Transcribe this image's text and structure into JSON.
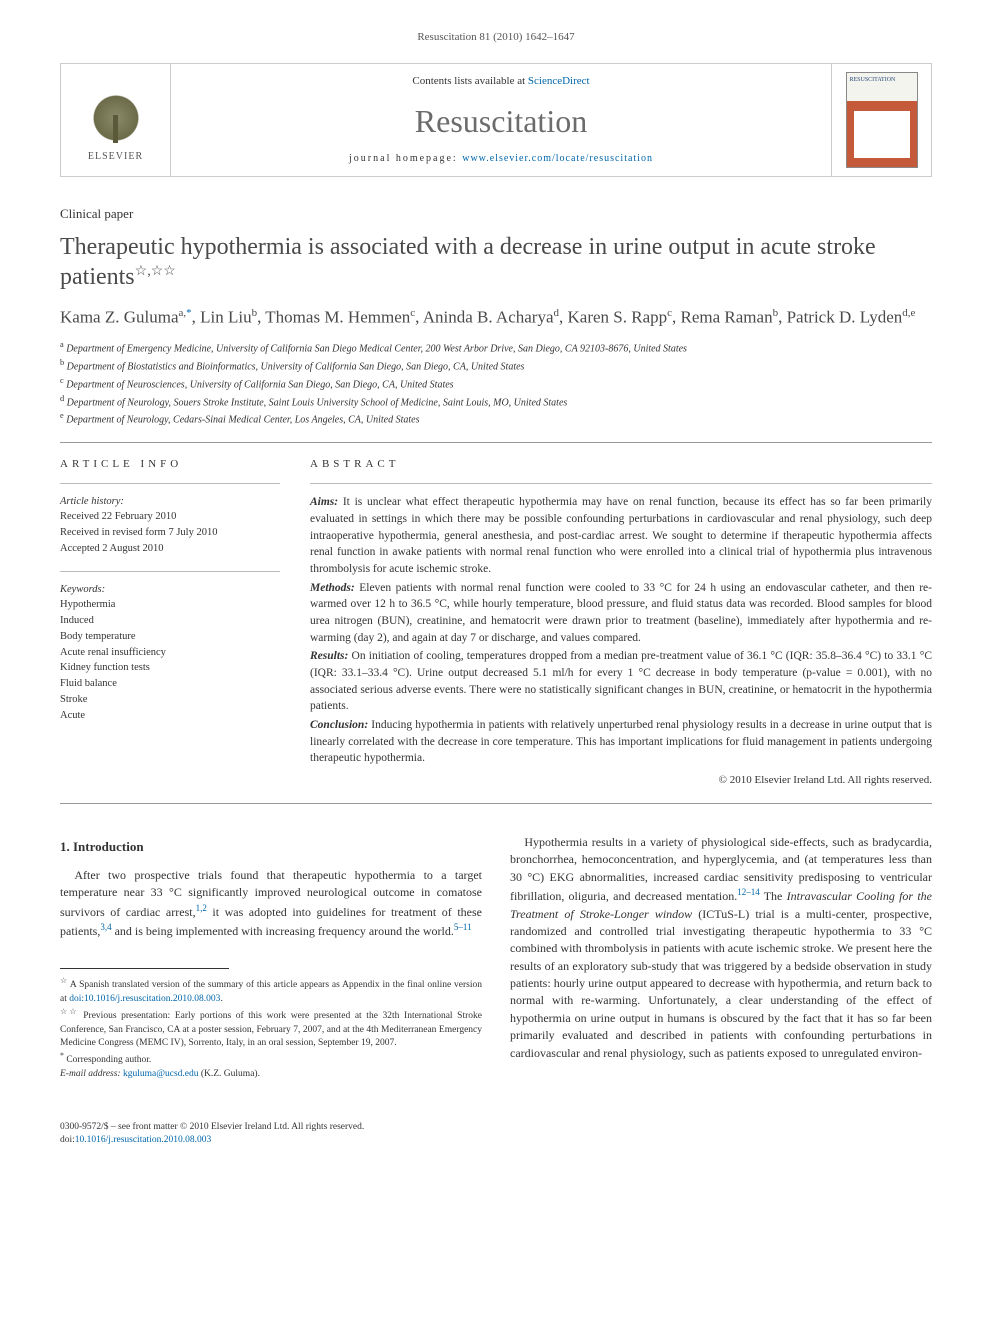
{
  "running_header": "Resuscitation 81 (2010) 1642–1647",
  "masthead": {
    "contents_prefix": "Contents lists available at ",
    "contents_link": "ScienceDirect",
    "journal_name": "Resuscitation",
    "homepage_prefix": "journal homepage: ",
    "homepage_link": "www.elsevier.com/locate/resuscitation",
    "publisher_label": "ELSEVIER",
    "cover_label": "RESUSCITATION"
  },
  "article_type": "Clinical paper",
  "title": "Therapeutic hypothermia is associated with a decrease in urine output in acute stroke patients",
  "title_stars": "☆,☆☆",
  "authors_html": "Kama Z. Guluma<sup class=\"aff-sup\">a,</sup><sup>*</sup>, Lin Liu<sup class=\"aff-sup\">b</sup>, Thomas M. Hemmen<sup class=\"aff-sup\">c</sup>, Aninda B. Acharya<sup class=\"aff-sup\">d</sup>, Karen S. Rapp<sup class=\"aff-sup\">c</sup>, Rema Raman<sup class=\"aff-sup\">b</sup>, Patrick D. Lyden<sup class=\"aff-sup\">d,e</sup>",
  "affiliations": [
    "a Department of Emergency Medicine, University of California San Diego Medical Center, 200 West Arbor Drive, San Diego, CA 92103-8676, United States",
    "b Department of Biostatistics and Bioinformatics, University of California San Diego, San Diego, CA, United States",
    "c Department of Neurosciences, University of California San Diego, San Diego, CA, United States",
    "d Department of Neurology, Souers Stroke Institute, Saint Louis University School of Medicine, Saint Louis, MO, United States",
    "e Department of Neurology, Cedars-Sinai Medical Center, Los Angeles, CA, United States"
  ],
  "info": {
    "heading": "article info",
    "history_label": "Article history:",
    "history": [
      "Received 22 February 2010",
      "Received in revised form 7 July 2010",
      "Accepted 2 August 2010"
    ],
    "keywords_label": "Keywords:",
    "keywords": [
      "Hypothermia",
      "Induced",
      "Body temperature",
      "Acute renal insufficiency",
      "Kidney function tests",
      "Fluid balance",
      "Stroke",
      "Acute"
    ]
  },
  "abstract": {
    "heading": "abstract",
    "aims_lead": "Aims:",
    "aims": " It is unclear what effect therapeutic hypothermia may have on renal function, because its effect has so far been primarily evaluated in settings in which there may be possible confounding perturbations in cardiovascular and renal physiology, such deep intraoperative hypothermia, general anesthesia, and post-cardiac arrest. We sought to determine if therapeutic hypothermia affects renal function in awake patients with normal renal function who were enrolled into a clinical trial of hypothermia plus intravenous thrombolysis for acute ischemic stroke.",
    "methods_lead": "Methods:",
    "methods": " Eleven patients with normal renal function were cooled to 33 °C for 24 h using an endovascular catheter, and then re-warmed over 12 h to 36.5 °C, while hourly temperature, blood pressure, and fluid status data was recorded. Blood samples for blood urea nitrogen (BUN), creatinine, and hematocrit were drawn prior to treatment (baseline), immediately after hypothermia and re-warming (day 2), and again at day 7 or discharge, and values compared.",
    "results_lead": "Results:",
    "results": " On initiation of cooling, temperatures dropped from a median pre-treatment value of 36.1 °C (IQR: 35.8–36.4 °C) to 33.1 °C (IQR: 33.1–33.4 °C). Urine output decreased 5.1 ml/h for every 1 °C decrease in body temperature (p-value = 0.001), with no associated serious adverse events. There were no statistically significant changes in BUN, creatinine, or hematocrit in the hypothermia patients.",
    "conclusion_lead": "Conclusion:",
    "conclusion": " Inducing hypothermia in patients with relatively unperturbed renal physiology results in a decrease in urine output that is linearly correlated with the decrease in core temperature. This has important implications for fluid management in patients undergoing therapeutic hypothermia.",
    "copyright": "© 2010 Elsevier Ireland Ltd. All rights reserved."
  },
  "body": {
    "section1_heading": "1.  Introduction",
    "para1_html": "After two prospective trials found that therapeutic hypothermia to a target temperature near 33 °C significantly improved neurological outcome in comatose survivors of cardiac arrest,<sup class=\"ref\">1,2</sup> it was adopted into guidelines for treatment of these patients,<sup class=\"ref\">3,4</sup> and is being implemented with increasing frequency around the world.<sup class=\"ref\">5–11</sup>",
    "para2_html": "Hypothermia results in a variety of physiological side-effects, such as bradycardia, bronchorrhea, hemoconcentration, and hyperglycemia, and (at temperatures less than 30 °C) EKG abnormalities, increased cardiac sensitivity predisposing to ventricular fibrillation, oliguria, and decreased mentation.<sup class=\"ref\">12–14</sup> The <span class=\"trial-name\">Intravascular Cooling for the Treatment of Stroke-Longer window</span> (ICTuS-L) trial is a multi-center, prospective, randomized and controlled trial investigating therapeutic hypothermia to 33 °C combined with thrombolysis in patients with acute ischemic stroke. We present here the results of an exploratory sub-study that was triggered by a bedside observation in study patients: hourly urine output appeared to decrease with hypothermia, and return back to normal with re-warming. Unfortunately, a clear understanding of the effect of hypothermia on urine output in humans is obscured by the fact that it has so far been primarily evaluated and described in patients with confounding perturbations in cardiovascular and renal physiology, such as patients exposed to unregulated environ-"
  },
  "footnotes": {
    "fn1_mark": "☆",
    "fn1_text": " A Spanish translated version of the summary of this article appears as Appendix in the final online version at ",
    "fn1_link": "doi:10.1016/j.resuscitation.2010.08.003",
    "fn1_tail": ".",
    "fn2_mark": "☆☆",
    "fn2_text": " Previous presentation: Early portions of this work were presented at the 32th International Stroke Conference, San Francisco, CA at a poster session, February 7, 2007, and at the 4th Mediterranean Emergency Medicine Congress (MEMC IV), Sorrento, Italy, in an oral session, September 19, 2007.",
    "corr_mark": "*",
    "corr_text": " Corresponding author.",
    "email_label": "E-mail address: ",
    "email": "kguluma@ucsd.edu",
    "email_tail": " (K.Z. Guluma)."
  },
  "footer": {
    "line1": "0300-9572/$ – see front matter © 2010 Elsevier Ireland Ltd. All rights reserved.",
    "doi_label": "doi:",
    "doi": "10.1016/j.resuscitation.2010.08.003"
  },
  "colors": {
    "link": "#0066aa",
    "text": "#333333",
    "heading_gray": "#4a4a4a",
    "rule": "#999999"
  }
}
